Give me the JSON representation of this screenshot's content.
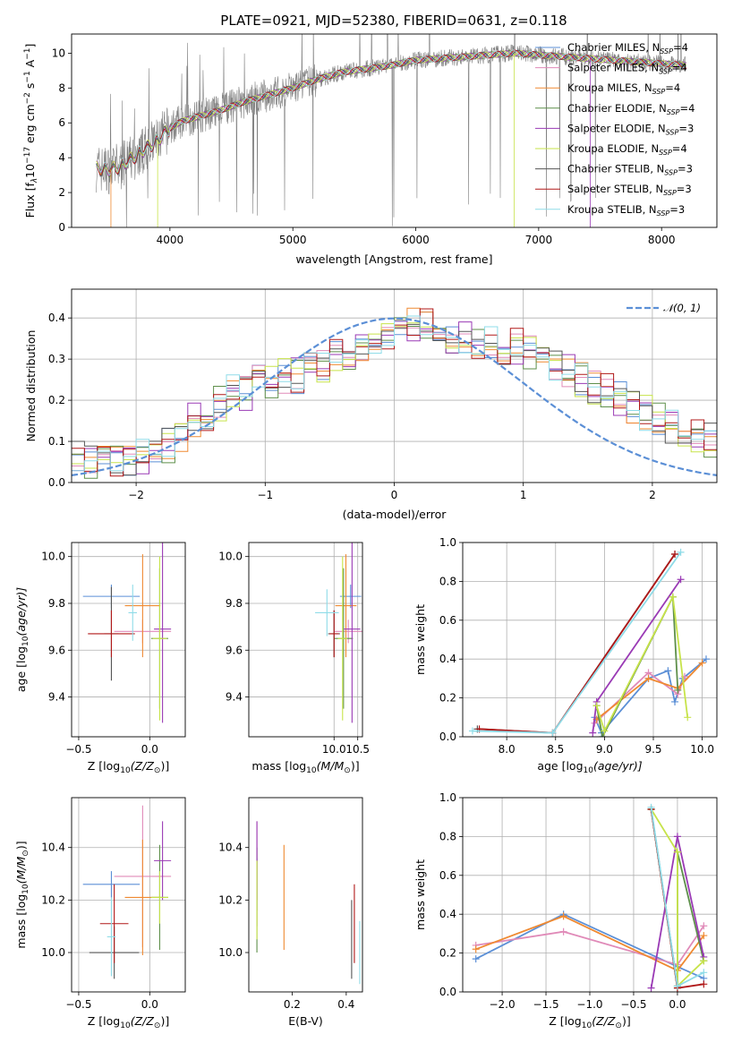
{
  "figure": {
    "title": "PLATE=0921, MJD=52380, FIBERID=0631, z=0.118"
  },
  "models": [
    {
      "name": "Chabrier MILES, N$_{SSP}$=4",
      "label_main": "Chabrier MILES, N",
      "label_sub": "SSP",
      "label_tail": "=4",
      "color": "#5b8fd6"
    },
    {
      "name": "Salpeter MILES, N$_{SSP}$=4",
      "label_main": "Salpeter MILES, N",
      "label_sub": "SSP",
      "label_tail": "=4",
      "color": "#e08ab8"
    },
    {
      "name": "Kroupa MILES, N$_{SSP}$=4",
      "label_main": "Kroupa MILES, N",
      "label_sub": "SSP",
      "label_tail": "=4",
      "color": "#ef8a32"
    },
    {
      "name": "Chabrier ELODIE, N$_{SSP}$=4",
      "label_main": "Chabrier ELODIE, N",
      "label_sub": "SSP",
      "label_tail": "=4",
      "color": "#5e8f4a"
    },
    {
      "name": "Salpeter ELODIE, N$_{SSP}$=3",
      "label_main": "Salpeter ELODIE, N",
      "label_sub": "SSP",
      "label_tail": "=3",
      "color": "#9a3ab5"
    },
    {
      "name": "Kroupa ELODIE, N$_{SSP}$=4",
      "label_main": "Kroupa ELODIE, N",
      "label_sub": "SSP",
      "label_tail": "=4",
      "color": "#c7e34a"
    },
    {
      "name": "Chabrier STELIB, N$_{SSP}$=3",
      "label_main": "Chabrier STELIB, N",
      "label_sub": "SSP",
      "label_tail": "=3",
      "color": "#555555"
    },
    {
      "name": "Salpeter STELIB, N$_{SSP}$=3",
      "label_main": "Salpeter STELIB, N",
      "label_sub": "SSP",
      "label_tail": "=3",
      "color": "#b01818"
    },
    {
      "name": "Kroupa STELIB, N$_{SSP}$=3",
      "label_main": "Kroupa STELIB, N",
      "label_sub": "SSP",
      "label_tail": "=3",
      "color": "#8fdce8"
    }
  ],
  "chart_data": [
    {
      "id": "spectrum",
      "type": "line",
      "xlabel": "wavelength [Angstrom, rest frame]",
      "ylabel_main": "Flux [f",
      "ylabel_tail": "10",
      "ylabel_exp": "−17",
      "ylabel_unit": " erg cm",
      "ylabel_exp2": "−2",
      "ylabel_unit2": " s",
      "ylabel_exp3": "−1",
      "ylabel_unit3": " A",
      "ylabel_exp4": "−1",
      "ylabel_close": "]",
      "xlim": [
        3200,
        8450
      ],
      "ylim": [
        0,
        11.1
      ],
      "xticks": [
        4000,
        5000,
        6000,
        7000,
        8000
      ],
      "yticks": [
        0,
        2,
        4,
        6,
        8,
        10
      ],
      "continuum": {
        "x": [
          3400,
          3500,
          3600,
          3700,
          3800,
          3900,
          4000,
          4100,
          4200,
          4400,
          4600,
          4800,
          5000,
          5200,
          5400,
          5600,
          5800,
          6000,
          6200,
          6400,
          6600,
          6800,
          7000,
          7200,
          7400,
          7600,
          7800,
          8000,
          8200
        ],
        "y": [
          3.4,
          3.3,
          3.5,
          4.0,
          4.5,
          5.0,
          5.7,
          6.1,
          6.3,
          6.7,
          7.2,
          7.6,
          8.0,
          8.5,
          8.9,
          9.1,
          9.3,
          9.6,
          9.7,
          9.8,
          9.9,
          10.0,
          9.9,
          9.8,
          9.7,
          9.6,
          9.5,
          9.4,
          9.3
        ]
      },
      "grid": false,
      "legend": "top-right"
    },
    {
      "id": "residuals",
      "type": "histogram",
      "xlabel": "(data-model)/error",
      "ylabel": "Normed distribution",
      "xlim": [
        -2.5,
        2.5
      ],
      "ylim": [
        0,
        0.47
      ],
      "xticks": [
        -2,
        -1,
        0,
        1,
        2
      ],
      "yticks": [
        0.0,
        0.1,
        0.2,
        0.3,
        0.4
      ],
      "reference": {
        "name": "𝒩(0, 1)",
        "color": "#5b8fd6"
      },
      "bin_width": 0.1,
      "profile": [
        0.06,
        0.05,
        0.07,
        0.06,
        0.06,
        0.06,
        0.07,
        0.09,
        0.12,
        0.15,
        0.17,
        0.19,
        0.22,
        0.22,
        0.25,
        0.24,
        0.26,
        0.26,
        0.29,
        0.28,
        0.31,
        0.32,
        0.33,
        0.34,
        0.36,
        0.36,
        0.38,
        0.38,
        0.36,
        0.34,
        0.35,
        0.33,
        0.34,
        0.31,
        0.33,
        0.32,
        0.3,
        0.29,
        0.27,
        0.25,
        0.23,
        0.22,
        0.2,
        0.18,
        0.17,
        0.15,
        0.14,
        0.12,
        0.11,
        0.1
      ],
      "grid": true,
      "legend": "top-right"
    },
    {
      "id": "age-vs-Z",
      "type": "errorbar",
      "xlabel": "Z [log",
      "xlabel_sub": "10",
      "xlabel_tail": "(Z/Z",
      "xlabel_sun_sub": "⊙",
      "xlabel_close": ")]",
      "ylabel": "age  [log",
      "ylabel_sub": "10",
      "ylabel_tail": "(age/yr)]",
      "xlim": [
        -0.55,
        0.25
      ],
      "ylim": [
        9.23,
        10.06
      ],
      "xticks": [
        -0.5,
        0.0
      ],
      "yticks": [
        9.4,
        9.6,
        9.8,
        10.0
      ],
      "points": [
        {
          "model": 0,
          "x": -0.27,
          "y": 9.83,
          "xerr": 0.4,
          "yerr": 0.05
        },
        {
          "model": 1,
          "x": -0.05,
          "y": 9.68,
          "xerr": 0.4,
          "yerr": 0.05
        },
        {
          "model": 2,
          "x": -0.05,
          "y": 9.79,
          "xerr": 0.25,
          "yerr": 0.22
        },
        {
          "model": 3,
          "x": 0.07,
          "y": 9.65,
          "xerr": 0.12,
          "yerr": 0.3
        },
        {
          "model": 4,
          "x": 0.09,
          "y": 9.69,
          "xerr": 0.12,
          "yerr": 0.4
        },
        {
          "model": 5,
          "x": 0.07,
          "y": 9.65,
          "xerr": 0.1,
          "yerr": 0.35
        },
        {
          "model": 6,
          "x": -0.27,
          "y": 9.67,
          "xerr": 0.1,
          "yerr": 0.2
        },
        {
          "model": 7,
          "x": -0.27,
          "y": 9.67,
          "xerr": 0.33,
          "yerr": 0.1
        },
        {
          "model": 8,
          "x": -0.12,
          "y": 9.76,
          "xerr": 0.06,
          "yerr": 0.12
        }
      ],
      "grid": true
    },
    {
      "id": "age-vs-mass",
      "type": "errorbar",
      "xlabel": "mass [log",
      "xlabel_sub": "10",
      "xlabel_tail": "(M/M",
      "xlabel_sun_sub": "⊙",
      "xlabel_close": ")]",
      "xlim": [
        8.2,
        10.6
      ],
      "ylim": [
        9.23,
        10.06
      ],
      "xticks": [
        10.0,
        10.5
      ],
      "yticks": [
        9.4,
        9.6,
        9.8,
        10.0
      ],
      "points": [
        {
          "model": 0,
          "x": 10.35,
          "y": 9.83,
          "xerr": 0.45,
          "yerr": 0.05
        },
        {
          "model": 1,
          "x": 10.3,
          "y": 9.68,
          "xerr": 0.6,
          "yerr": 0.05
        },
        {
          "model": 2,
          "x": 10.25,
          "y": 9.79,
          "xerr": 0.45,
          "yerr": 0.22
        },
        {
          "model": 3,
          "x": 10.2,
          "y": 9.65,
          "xerr": 0.4,
          "yerr": 0.3
        },
        {
          "model": 4,
          "x": 10.38,
          "y": 9.69,
          "xerr": 0.35,
          "yerr": 0.4
        },
        {
          "model": 5,
          "x": 10.18,
          "y": 9.65,
          "xerr": 0.2,
          "yerr": 0.35
        },
        {
          "model": 6,
          "x": 10.0,
          "y": 9.67,
          "xerr": 0.25,
          "yerr": 0.1
        },
        {
          "model": 7,
          "x": 10.0,
          "y": 9.67,
          "xerr": 0.2,
          "yerr": 0.1
        },
        {
          "model": 8,
          "x": 9.85,
          "y": 9.76,
          "xerr": 0.5,
          "yerr": 0.1
        }
      ],
      "grid": true
    },
    {
      "id": "weight-vs-age",
      "type": "line",
      "xlabel": "age  [log",
      "xlabel_sub": "10",
      "xlabel_tail": "(age/yr)]",
      "ylabel": "mass weight",
      "xlim": [
        7.55,
        10.15
      ],
      "ylim": [
        0,
        1.0
      ],
      "xticks": [
        8.0,
        8.5,
        9.0,
        9.5,
        10.0
      ],
      "yticks": [
        0.0,
        0.2,
        0.4,
        0.6,
        0.8,
        1.0
      ],
      "series": [
        {
          "model": 0,
          "x": [
            8.9,
            8.97,
            9.45,
            9.65,
            9.72,
            9.8,
            10.04
          ],
          "y": [
            0.1,
            0.02,
            0.3,
            0.34,
            0.18,
            0.3,
            0.4
          ]
        },
        {
          "model": 1,
          "x": [
            8.9,
            9.45,
            9.75,
            9.82
          ],
          "y": [
            0.07,
            0.33,
            0.22,
            0.31
          ]
        },
        {
          "model": 2,
          "x": [
            8.92,
            9.45,
            9.75,
            10.0
          ],
          "y": [
            0.09,
            0.3,
            0.25,
            0.38
          ]
        },
        {
          "model": 3,
          "x": [
            8.92,
            8.98,
            9.7,
            9.75
          ],
          "y": [
            0.16,
            0.0,
            0.72,
            0.24
          ]
        },
        {
          "model": 4,
          "x": [
            8.88,
            8.92,
            9.78
          ],
          "y": [
            0.02,
            0.18,
            0.81
          ]
        },
        {
          "model": 5,
          "x": [
            8.92,
            9.0,
            9.7,
            9.85
          ],
          "y": [
            0.16,
            0.03,
            0.72,
            0.1
          ]
        },
        {
          "model": 6,
          "x": [
            7.7,
            8.47,
            9.72
          ],
          "y": [
            0.04,
            0.02,
            0.94
          ]
        },
        {
          "model": 7,
          "x": [
            7.72,
            8.47,
            9.72
          ],
          "y": [
            0.04,
            0.02,
            0.94
          ]
        },
        {
          "model": 8,
          "x": [
            7.65,
            8.47,
            9.78
          ],
          "y": [
            0.03,
            0.02,
            0.95
          ]
        }
      ],
      "grid": true
    },
    {
      "id": "mass-vs-Z",
      "type": "errorbar",
      "xlabel": "Z [log",
      "xlabel_sub": "10",
      "xlabel_tail": "(Z/Z",
      "xlabel_sun_sub": "⊙",
      "xlabel_close": ")]",
      "ylabel": "mass [log",
      "ylabel_sub": "10",
      "ylabel_tail": "(M/M",
      "ylabel_sun_sub": "⊙",
      "ylabel_close": ")]",
      "xlim": [
        -0.55,
        0.25
      ],
      "ylim": [
        9.85,
        10.59
      ],
      "xticks": [
        -0.5,
        0.0
      ],
      "yticks": [
        10.0,
        10.2,
        10.4
      ],
      "points": [
        {
          "model": 0,
          "x": -0.27,
          "y": 10.26,
          "xerr": 0.4,
          "yerr": 0.05
        },
        {
          "model": 1,
          "x": -0.05,
          "y": 10.29,
          "xerr": 0.4,
          "yerr": 0.27
        },
        {
          "model": 2,
          "x": -0.05,
          "y": 10.21,
          "xerr": 0.25,
          "yerr": 0.22
        },
        {
          "model": 3,
          "x": 0.07,
          "y": 10.21,
          "xerr": 0.12,
          "yerr": 0.2
        },
        {
          "model": 4,
          "x": 0.09,
          "y": 10.35,
          "xerr": 0.12,
          "yerr": 0.15
        },
        {
          "model": 5,
          "x": 0.07,
          "y": 10.21,
          "xerr": 0.12,
          "yerr": 0.1
        },
        {
          "model": 6,
          "x": -0.25,
          "y": 10.0,
          "xerr": 0.35,
          "yerr": 0.1
        },
        {
          "model": 7,
          "x": -0.25,
          "y": 10.11,
          "xerr": 0.2,
          "yerr": 0.15
        },
        {
          "model": 8,
          "x": -0.27,
          "y": 10.06,
          "xerr": 0.06,
          "yerr": 0.15
        }
      ],
      "grid": true
    },
    {
      "id": "mass-vs-ebv",
      "type": "errorbar",
      "xlabel": "E(B-V)",
      "xlim": [
        0.04,
        0.46
      ],
      "ylim": [
        9.85,
        10.59
      ],
      "xticks": [
        0.2,
        0.4
      ],
      "yticks": [
        10.0,
        10.2,
        10.4
      ],
      "points": [
        {
          "model": 0,
          "x": 0.07,
          "y": 10.26,
          "yerr": 0.1
        },
        {
          "model": 1,
          "x": 0.07,
          "y": 10.3,
          "yerr": 0.2
        },
        {
          "model": 2,
          "x": 0.17,
          "y": 10.21,
          "yerr": 0.2
        },
        {
          "model": 3,
          "x": 0.07,
          "y": 10.2,
          "yerr": 0.2
        },
        {
          "model": 4,
          "x": 0.07,
          "y": 10.35,
          "yerr": 0.15
        },
        {
          "model": 5,
          "x": 0.07,
          "y": 10.2,
          "yerr": 0.15
        },
        {
          "model": 6,
          "x": 0.42,
          "y": 10.05,
          "yerr": 0.15
        },
        {
          "model": 7,
          "x": 0.43,
          "y": 10.11,
          "yerr": 0.15
        },
        {
          "model": 8,
          "x": 0.45,
          "y": 10.0,
          "yerr": 0.12
        }
      ],
      "grid": false
    },
    {
      "id": "weight-vs-Z",
      "type": "line",
      "xlabel": "Z [log",
      "xlabel_sub": "10",
      "xlabel_tail": "(Z/Z",
      "xlabel_sun_sub": "⊙",
      "xlabel_close": ")]",
      "ylabel": "mass weight",
      "xlim": [
        -2.45,
        0.45
      ],
      "ylim": [
        0,
        1.0
      ],
      "xticks": [
        -2.0,
        -1.5,
        -1.0,
        -0.5,
        0.0
      ],
      "yticks": [
        0.0,
        0.2,
        0.4,
        0.6,
        0.8,
        1.0
      ],
      "series": [
        {
          "model": 0,
          "x": [
            -2.3,
            -1.3,
            0.0,
            0.3
          ],
          "y": [
            0.17,
            0.4,
            0.13,
            0.07
          ]
        },
        {
          "model": 1,
          "x": [
            -2.3,
            -1.3,
            0.0,
            0.3
          ],
          "y": [
            0.24,
            0.31,
            0.14,
            0.34
          ]
        },
        {
          "model": 2,
          "x": [
            -2.3,
            -1.3,
            0.0,
            0.3
          ],
          "y": [
            0.22,
            0.39,
            0.11,
            0.29
          ]
        },
        {
          "model": 3,
          "x": [
            -0.3,
            0.0,
            0.0,
            0.3
          ],
          "y": [
            0.94,
            0.02,
            0.72,
            0.16
          ]
        },
        {
          "model": 4,
          "x": [
            -0.3,
            0.0,
            0.3
          ],
          "y": [
            0.02,
            0.8,
            0.18
          ]
        },
        {
          "model": 5,
          "x": [
            -0.3,
            0.0,
            0.0,
            0.3
          ],
          "y": [
            0.94,
            0.72,
            0.03,
            0.16
          ]
        },
        {
          "model": 6,
          "x": [
            -0.3,
            0.0
          ],
          "y": [
            0.94,
            0.03
          ]
        },
        {
          "model": 7,
          "x": [
            -0.3,
            0.0,
            0.3
          ],
          "y": [
            0.94,
            0.02,
            0.04
          ]
        },
        {
          "model": 8,
          "x": [
            -0.3,
            0.0,
            0.3
          ],
          "y": [
            0.95,
            0.03,
            0.1
          ]
        }
      ],
      "grid": true
    }
  ]
}
